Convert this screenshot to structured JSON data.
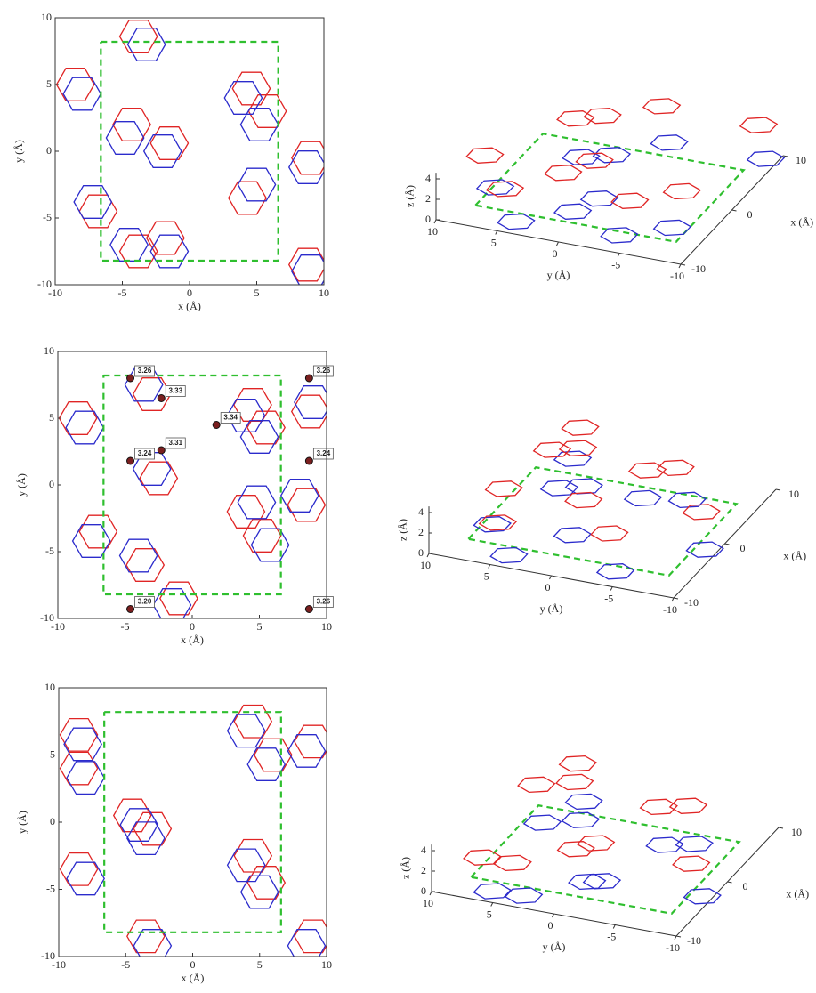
{
  "chart_data": [
    {
      "type": "structure2d",
      "xlim": [
        -10,
        10
      ],
      "ylim": [
        -10,
        10
      ],
      "xticks": [
        -10,
        -5,
        0,
        5,
        10
      ],
      "yticks": [
        -10,
        -5,
        0,
        5,
        10
      ],
      "xlabel": "x (Å)",
      "ylabel": "y (Å)",
      "cell": {
        "x": [
          -6.6,
          6.6,
          6.6,
          -6.6,
          -6.6
        ],
        "y": [
          8.2,
          8.2,
          -8.2,
          -8.2,
          8.2
        ],
        "color": "#2fbf2f"
      },
      "layers": [
        {
          "color": "#e02525",
          "x": [
            -3.8,
            -1.5,
            -4.3,
            4.6,
            5.8,
            9.0,
            -8.5,
            -6.8,
            -3.8,
            8.8,
            4.3,
            -1.8
          ],
          "y": [
            8.6,
            0.6,
            2.0,
            4.7,
            3.0,
            -0.5,
            5.0,
            -4.5,
            -7.5,
            -8.5,
            -3.5,
            -6.5
          ]
        },
        {
          "color": "#2b2bcc",
          "x": [
            -3.2,
            -2.0,
            -4.8,
            4.0,
            5.2,
            8.8,
            -8.0,
            -7.2,
            -4.5,
            9.0,
            5.0,
            -1.5
          ],
          "y": [
            8.0,
            0.0,
            1.0,
            4.0,
            2.0,
            -1.2,
            4.3,
            -3.8,
            -7.0,
            -9.0,
            -2.5,
            -7.5
          ]
        }
      ]
    },
    {
      "type": "structure3d",
      "xlim": [
        -10,
        10
      ],
      "ylim": [
        -10,
        10
      ],
      "zlim": [
        0,
        4.6
      ],
      "xticks": [
        -10,
        0,
        10
      ],
      "yticks": [
        10,
        5,
        0,
        -5,
        -10
      ],
      "zticks": [
        0,
        2,
        4
      ],
      "xlabel": "x (Å)",
      "ylabel": "y (Å)",
      "zlabel": "z (Å)",
      "cell": {
        "x": [
          -6.6,
          6.6,
          6.6,
          -6.6,
          -6.6
        ],
        "y": [
          8.2,
          8.2,
          -8.2,
          -8.2,
          8.2
        ],
        "color": "#2fbf2f"
      },
      "layers": [
        {
          "color": "#2b2bcc",
          "z": 0,
          "x": [
            -3.2,
            -2.0,
            -4.8,
            4.0,
            5.2,
            8.8,
            -8.0,
            -7.2,
            -4.5,
            9.0
          ],
          "y": [
            8.0,
            0.0,
            1.0,
            4.0,
            2.0,
            -1.2,
            4.3,
            -3.8,
            -7.0,
            -9.0
          ]
        },
        {
          "color": "#e02525",
          "z": 3.3,
          "x": [
            -3.8,
            -1.5,
            -4.3,
            4.6,
            5.8,
            9.0,
            -8.5,
            -6.8,
            -3.8,
            8.8
          ],
          "y": [
            8.6,
            0.6,
            2.0,
            4.7,
            3.0,
            -0.5,
            5.0,
            -4.5,
            -7.5,
            -8.5
          ]
        }
      ]
    },
    {
      "type": "structure2d",
      "xlim": [
        -10,
        10
      ],
      "ylim": [
        -10,
        10
      ],
      "xticks": [
        -10,
        -5,
        0,
        5,
        10
      ],
      "yticks": [
        -10,
        -5,
        0,
        5,
        10
      ],
      "xlabel": "x (Å)",
      "ylabel": "y (Å)",
      "cell": {
        "x": [
          -6.6,
          6.6,
          6.6,
          -6.6,
          -6.6
        ],
        "y": [
          8.2,
          8.2,
          -8.2,
          -8.2,
          8.2
        ],
        "color": "#2fbf2f"
      },
      "layers": [
        {
          "color": "#e02525",
          "x": [
            -3.0,
            -2.5,
            4.5,
            5.5,
            8.8,
            -8.5,
            -7.0,
            4.0,
            5.2,
            -1.0,
            8.5,
            -3.5
          ],
          "y": [
            6.8,
            0.5,
            6.0,
            4.3,
            5.5,
            5.0,
            -3.5,
            -2.0,
            -3.8,
            -8.5,
            -1.5,
            -6.0
          ]
        },
        {
          "color": "#2b2bcc",
          "x": [
            -3.6,
            -3.0,
            4.0,
            5.0,
            9.0,
            -8.0,
            -7.5,
            4.8,
            5.8,
            -1.5,
            8.0,
            -4.0
          ],
          "y": [
            7.5,
            1.2,
            5.2,
            3.6,
            6.2,
            4.3,
            -4.2,
            -1.3,
            -4.5,
            -9.0,
            -0.8,
            -5.3
          ]
        }
      ],
      "contacts": {
        "x": [
          -4.6,
          -2.3,
          1.8,
          -4.6,
          -2.3,
          8.7,
          8.7,
          -4.6,
          8.7
        ],
        "y": [
          8.0,
          6.5,
          4.5,
          1.8,
          2.6,
          8.0,
          1.8,
          -9.3,
          -9.3
        ],
        "values": [
          3.26,
          3.33,
          3.34,
          3.24,
          3.31,
          3.26,
          3.24,
          3.2,
          3.26
        ],
        "value_labels": [
          "3.26",
          "3.33",
          "3.34",
          "3.24",
          "3.31",
          "3.26",
          "3.24",
          "3.20",
          "3.26"
        ]
      }
    },
    {
      "type": "structure3d",
      "xlim": [
        -10,
        10
      ],
      "ylim": [
        -10,
        10
      ],
      "zlim": [
        0,
        4.6
      ],
      "xticks": [
        -10,
        0,
        10
      ],
      "yticks": [
        10,
        5,
        0,
        -5,
        -10
      ],
      "zticks": [
        0,
        2,
        4
      ],
      "xlabel": "x (Å)",
      "ylabel": "y (Å)",
      "zlabel": "z (Å)",
      "cell": {
        "x": [
          -6.6,
          6.6,
          6.6,
          -6.6,
          -6.6
        ],
        "y": [
          8.2,
          8.2,
          -8.2,
          -8.2,
          8.2
        ],
        "color": "#2fbf2f"
      },
      "layers": [
        {
          "color": "#2b2bcc",
          "z": 0,
          "x": [
            -3.6,
            -3.0,
            4.0,
            5.0,
            9.0,
            -8.0,
            -7.5,
            4.8,
            5.8,
            -1.5
          ],
          "y": [
            7.5,
            1.2,
            5.2,
            3.6,
            6.2,
            4.3,
            -4.2,
            -1.3,
            -4.5,
            -9.0
          ]
        },
        {
          "color": "#e02525",
          "z": 3.3,
          "x": [
            -3.0,
            -2.5,
            4.5,
            5.5,
            8.8,
            -8.5,
            -7.0,
            4.0,
            5.2,
            -1.0
          ],
          "y": [
            6.8,
            0.5,
            6.0,
            4.3,
            5.5,
            5.0,
            -3.5,
            -2.0,
            -3.8,
            -8.5
          ]
        }
      ]
    },
    {
      "type": "structure2d",
      "xlim": [
        -10,
        10
      ],
      "ylim": [
        -10,
        10
      ],
      "xticks": [
        -10,
        -5,
        0,
        5,
        10
      ],
      "yticks": [
        -10,
        -5,
        0,
        5,
        10
      ],
      "xlabel": "x (Å)",
      "ylabel": "y (Å)",
      "cell": {
        "x": [
          -6.6,
          6.6,
          6.6,
          -6.6,
          -6.6
        ],
        "y": [
          8.2,
          8.2,
          -8.2,
          -8.2,
          8.2
        ],
        "color": "#2fbf2f"
      },
      "layers": [
        {
          "color": "#e02525",
          "x": [
            -8.5,
            -8.5,
            4.5,
            6.0,
            9.0,
            -3.0,
            -4.5,
            4.5,
            5.5,
            -3.5,
            -8.5,
            9.0
          ],
          "y": [
            6.5,
            4.0,
            7.5,
            5.0,
            6.0,
            -0.5,
            0.5,
            -2.5,
            -4.5,
            -8.5,
            -3.5,
            -8.5
          ]
        },
        {
          "color": "#2b2bcc",
          "x": [
            -8.2,
            -8.0,
            4.0,
            5.5,
            8.5,
            -3.5,
            -4.0,
            4.0,
            5.0,
            -3.0,
            -8.0,
            8.5
          ],
          "y": [
            5.8,
            3.3,
            6.8,
            4.3,
            5.3,
            -1.2,
            -0.2,
            -3.2,
            -5.2,
            -9.2,
            -4.2,
            -9.2
          ]
        }
      ]
    },
    {
      "type": "structure3d",
      "xlim": [
        -10,
        10
      ],
      "ylim": [
        -10,
        10
      ],
      "zlim": [
        0,
        4.6
      ],
      "xticks": [
        -10,
        0,
        10
      ],
      "yticks": [
        10,
        5,
        0,
        -5,
        -10
      ],
      "zticks": [
        0,
        2,
        4
      ],
      "xlabel": "x (Å)",
      "ylabel": "y (Å)",
      "zlabel": "z (Å)",
      "cell": {
        "x": [
          -6.6,
          6.6,
          6.6,
          -6.6,
          -6.6
        ],
        "y": [
          8.2,
          8.2,
          -8.2,
          -8.2,
          8.2
        ],
        "color": "#2fbf2f"
      },
      "layers": [
        {
          "color": "#2b2bcc",
          "z": 0,
          "x": [
            -8.2,
            -8.0,
            4.0,
            5.5,
            8.5,
            -3.5,
            -4.0,
            4.0,
            5.0,
            -3.0
          ],
          "y": [
            5.8,
            3.3,
            6.8,
            4.3,
            5.3,
            -1.2,
            -0.2,
            -3.2,
            -5.2,
            -9.2
          ]
        },
        {
          "color": "#e02525",
          "z": 3.3,
          "x": [
            -8.5,
            -8.5,
            4.5,
            6.0,
            9.0,
            -3.0,
            -4.5,
            4.5,
            5.5,
            -3.5
          ],
          "y": [
            6.5,
            4.0,
            7.5,
            5.0,
            6.0,
            -0.5,
            0.5,
            -2.5,
            -4.5,
            -8.5
          ]
        }
      ]
    }
  ]
}
